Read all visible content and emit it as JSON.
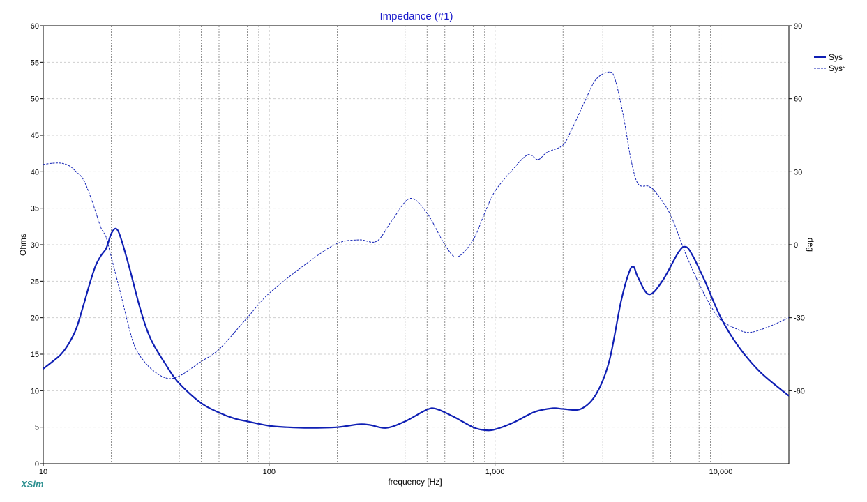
{
  "app": {
    "brand": "XSim"
  },
  "chart_data": {
    "type": "line",
    "title": "Impedance (#1)",
    "xlabel": "frequency [Hz]",
    "ylabel": "Ohms",
    "y2label": "deg",
    "xscale": "log",
    "xlim": [
      10,
      20000
    ],
    "ylim": [
      0,
      60
    ],
    "y2lim": [
      -90,
      90
    ],
    "grid": true,
    "legend_position": "top-right",
    "x_ticks": [
      {
        "value": 10,
        "label": "10"
      },
      {
        "value": 100,
        "label": "100"
      },
      {
        "value": 1000,
        "label": "1,000"
      },
      {
        "value": 10000,
        "label": "10,000"
      }
    ],
    "y_ticks": [
      0,
      5,
      10,
      15,
      20,
      25,
      30,
      35,
      40,
      45,
      50,
      55,
      60
    ],
    "y2_ticks": [
      -60,
      -30,
      0,
      30,
      60,
      90
    ],
    "colors": {
      "line": "#0f1fb4",
      "grid": "#cfcfcf",
      "axis": "#000000",
      "title": "#1a1acc",
      "brand": "#2a8f8f"
    },
    "series": [
      {
        "name": "Sys",
        "axis": "left",
        "style": "solid",
        "x": [
          10,
          11,
          12,
          13,
          14,
          15,
          16,
          17,
          18,
          19,
          20,
          21,
          22,
          24,
          27,
          30,
          35,
          40,
          50,
          60,
          70,
          80,
          100,
          120,
          150,
          200,
          250,
          280,
          330,
          400,
          500,
          550,
          650,
          800,
          900,
          1000,
          1200,
          1500,
          1800,
          2000,
          2400,
          2800,
          3200,
          3600,
          3900,
          4100,
          4300,
          4800,
          5500,
          6500,
          7000,
          7500,
          8500,
          10000,
          12000,
          15000,
          20000
        ],
        "values": [
          13,
          14,
          15,
          16.5,
          18.5,
          21.5,
          24.5,
          27,
          28.5,
          29.5,
          31.5,
          32.2,
          31,
          27,
          21,
          17,
          13.5,
          11,
          8.3,
          7,
          6.2,
          5.8,
          5.2,
          5.0,
          4.9,
          5.0,
          5.4,
          5.3,
          4.9,
          5.8,
          7.4,
          7.5,
          6.5,
          5.0,
          4.6,
          4.7,
          5.6,
          7.1,
          7.6,
          7.5,
          7.5,
          9.5,
          14,
          22,
          26,
          27,
          25.5,
          23.2,
          25,
          29,
          29.7,
          28.5,
          25,
          20,
          16,
          12.5,
          9.3
        ]
      },
      {
        "name": "Sys°",
        "axis": "right",
        "style": "dashed",
        "x": [
          10,
          11,
          12,
          13,
          14,
          15,
          16,
          17,
          18,
          19,
          20,
          22,
          25,
          28,
          32,
          36,
          40,
          45,
          50,
          60,
          80,
          100,
          150,
          200,
          250,
          300,
          350,
          420,
          500,
          600,
          680,
          800,
          900,
          1000,
          1200,
          1400,
          1550,
          1700,
          2000,
          2200,
          2500,
          2800,
          3200,
          3400,
          3700,
          4000,
          4300,
          4800,
          5200,
          6000,
          7000,
          8000,
          9000,
          10000,
          12000,
          13500,
          16000,
          20000
        ],
        "values": [
          33,
          33.5,
          33.5,
          32.5,
          30,
          27,
          21,
          14,
          7,
          3,
          -5,
          -20,
          -40,
          -48,
          -53,
          -55,
          -54,
          -51,
          -48,
          -43,
          -30,
          -20,
          -7,
          0.5,
          2,
          1.5,
          10,
          19,
          13,
          0,
          -5,
          2,
          13,
          22,
          31,
          37,
          35,
          38,
          41,
          48,
          59,
          68,
          71,
          68,
          53,
          35,
          25,
          24,
          21,
          12,
          -4,
          -16,
          -25,
          -31,
          -35,
          -36,
          -34,
          -30
        ]
      }
    ]
  }
}
